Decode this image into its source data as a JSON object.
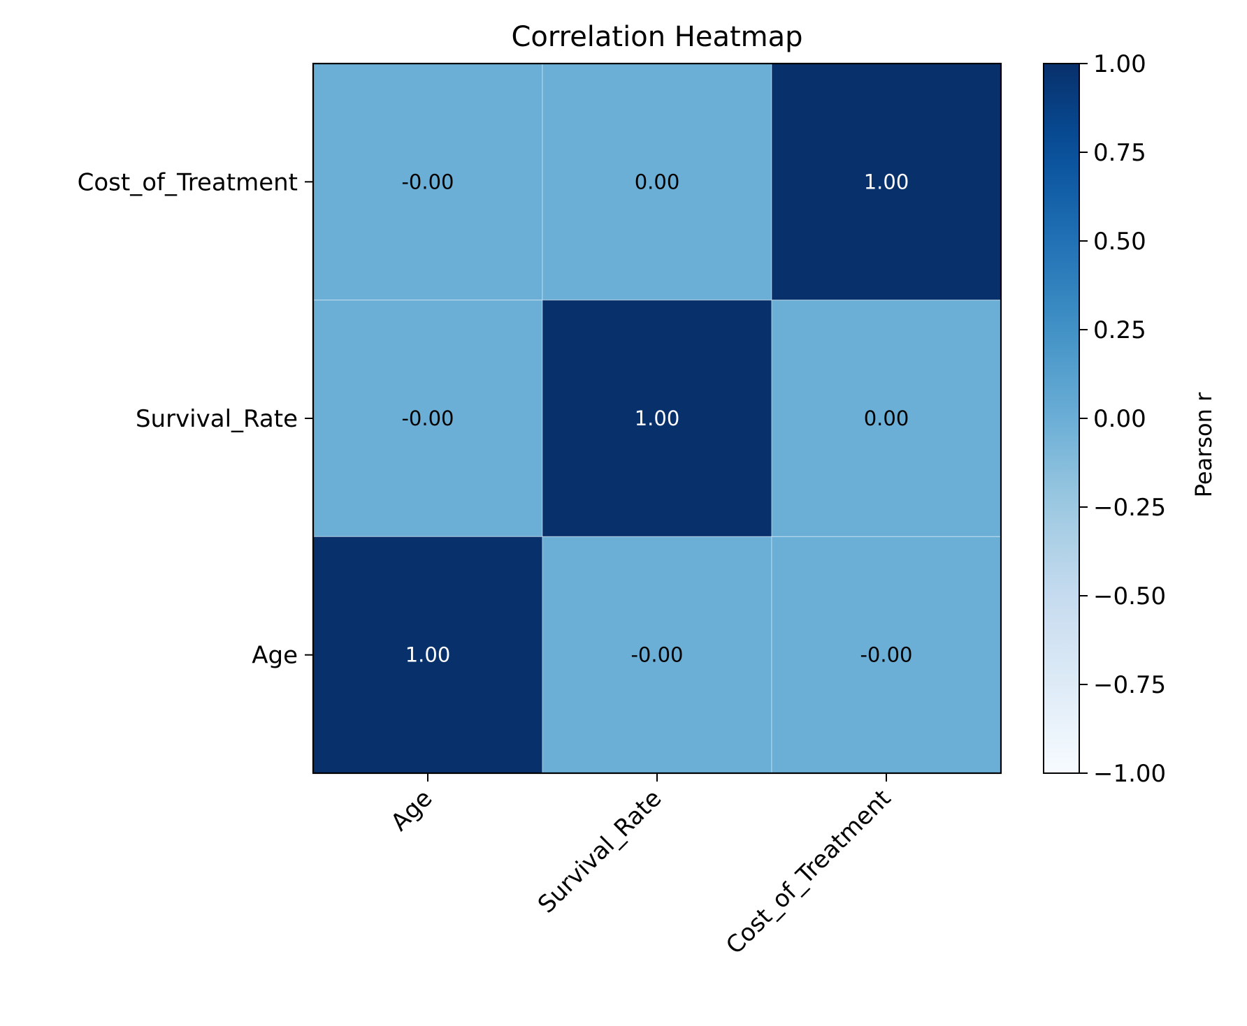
{
  "chart_data": {
    "type": "heatmap",
    "title": "Correlation Heatmap",
    "x_categories": [
      "Age",
      "Survival_Rate",
      "Cost_of_Treatment"
    ],
    "y_categories": [
      "Cost_of_Treatment",
      "Survival_Rate",
      "Age"
    ],
    "matrix": [
      [
        -0.0,
        0.0,
        1.0
      ],
      [
        -0.0,
        1.0,
        0.0
      ],
      [
        1.0,
        -0.0,
        -0.0
      ]
    ],
    "cell_labels": [
      [
        "-0.00",
        "0.00",
        "1.00"
      ],
      [
        "-0.00",
        "1.00",
        "0.00"
      ],
      [
        "1.00",
        "-0.00",
        "-0.00"
      ]
    ],
    "colorbar": {
      "label": "Pearson r",
      "range": [
        -1.0,
        1.0
      ],
      "ticks": [
        1.0,
        0.75,
        0.5,
        0.25,
        0.0,
        -0.25,
        -0.5,
        -0.75,
        -1.0
      ],
      "tick_labels": [
        "1.00",
        "0.75",
        "0.50",
        "0.25",
        "0.00",
        "−0.25",
        "−0.50",
        "−0.75",
        "−1.00"
      ],
      "colormap": "Blues"
    },
    "grid": false
  }
}
